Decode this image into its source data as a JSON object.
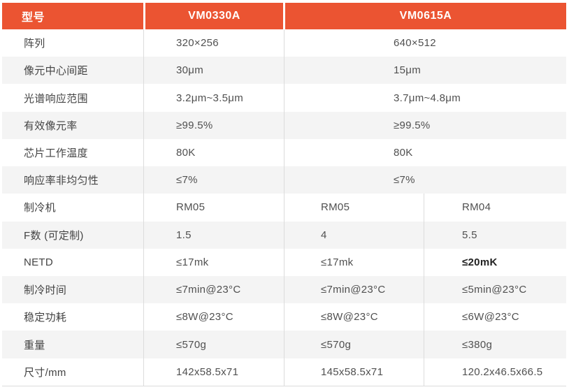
{
  "theme": {
    "accent": "#EB5432",
    "stripe": "#F4F4F4",
    "divider": "#DCDCDC",
    "label-text": "#434343",
    "value-text": "#505050",
    "header-text": "#FFFFFF"
  },
  "table": {
    "header": {
      "model_label": "型号",
      "col_vm0330a": "VM0330A",
      "col_vm0615a": "VM0615A"
    },
    "rows": [
      {
        "label": "阵列",
        "vm0330a": "320×256",
        "vm0615a": [
          "640×512"
        ]
      },
      {
        "label": "像元中心间距",
        "vm0330a": "30μm",
        "vm0615a": [
          "15μm"
        ]
      },
      {
        "label": "光谱响应范围",
        "vm0330a": "3.2μm~3.5μm",
        "vm0615a": [
          "3.7μm~4.8μm"
        ]
      },
      {
        "label": "有效像元率",
        "vm0330a": "≥99.5%",
        "vm0615a": [
          "≥99.5%"
        ]
      },
      {
        "label": "芯片工作温度",
        "vm0330a": "80K",
        "vm0615a": [
          "80K"
        ]
      },
      {
        "label": "响应率非均匀性",
        "vm0330a": "≤7%",
        "vm0615a": [
          "≤7%"
        ]
      },
      {
        "label": "制冷机",
        "vm0330a": "RM05",
        "vm0615a": [
          "RM05",
          "RM04"
        ]
      },
      {
        "label": "F数 (可定制)",
        "vm0330a": "1.5",
        "vm0615a": [
          "4",
          "5.5"
        ]
      },
      {
        "label": "NETD",
        "vm0330a": "≤17mk",
        "vm0615a": [
          "≤17mk",
          "≤20mK"
        ],
        "bold": [
          false,
          true
        ]
      },
      {
        "label": "制冷时间",
        "vm0330a": "≤7min@23°C",
        "vm0615a": [
          "≤7min@23°C",
          "≤5min@23°C"
        ]
      },
      {
        "label": "稳定功耗",
        "vm0330a": "≤8W@23°C",
        "vm0615a": [
          "≤8W@23°C",
          "≤6W@23°C"
        ]
      },
      {
        "label": "重量",
        "vm0330a": "≤570g",
        "vm0615a": [
          "≤570g",
          "≤380g"
        ]
      },
      {
        "label": "尺寸/mm",
        "vm0330a": "142x58.5x71",
        "vm0615a": [
          "145x58.5x71",
          "120.2x46.5x66.5"
        ]
      }
    ]
  }
}
